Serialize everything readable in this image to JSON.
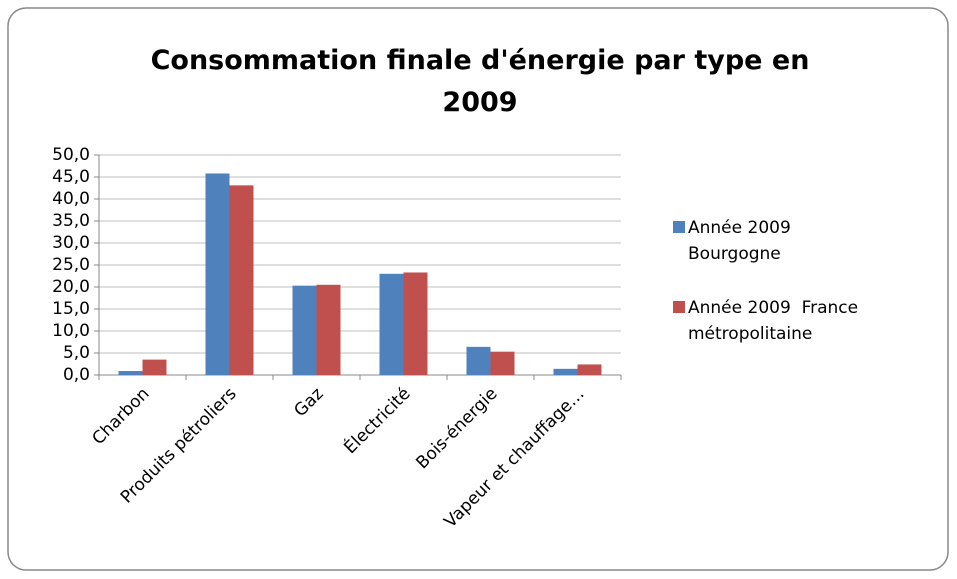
{
  "chart_data": {
    "type": "bar",
    "title": "Consommation finale d'énergie par type en 2009",
    "categories": [
      "Charbon",
      "Produits pétroliers",
      "Gaz",
      "Électricité",
      "Bois-énergie",
      "Vapeur et chauffage…"
    ],
    "series": [
      {
        "name": "Année 2009  Bourgogne",
        "color": "#4f81bd",
        "values": [
          0.9,
          45.8,
          20.3,
          23.0,
          6.4,
          1.4
        ]
      },
      {
        "name": "Année 2009  France métropolitaine",
        "color": "#c0504d",
        "values": [
          3.5,
          43.1,
          20.5,
          23.3,
          5.3,
          2.4
        ]
      }
    ],
    "ylim": [
      0,
      50
    ],
    "yticks": [
      {
        "value": 0,
        "label": "0,0"
      },
      {
        "value": 5,
        "label": "5,0"
      },
      {
        "value": 10,
        "label": "10,0"
      },
      {
        "value": 15,
        "label": "15,0"
      },
      {
        "value": 20,
        "label": "20,0"
      },
      {
        "value": 25,
        "label": "25,0"
      },
      {
        "value": 30,
        "label": "30,0"
      },
      {
        "value": 35,
        "label": "35,0"
      },
      {
        "value": 40,
        "label": "40,0"
      },
      {
        "value": 45,
        "label": "45,0"
      },
      {
        "value": 50,
        "label": "50,0"
      }
    ],
    "grid": true,
    "legend": "right"
  }
}
